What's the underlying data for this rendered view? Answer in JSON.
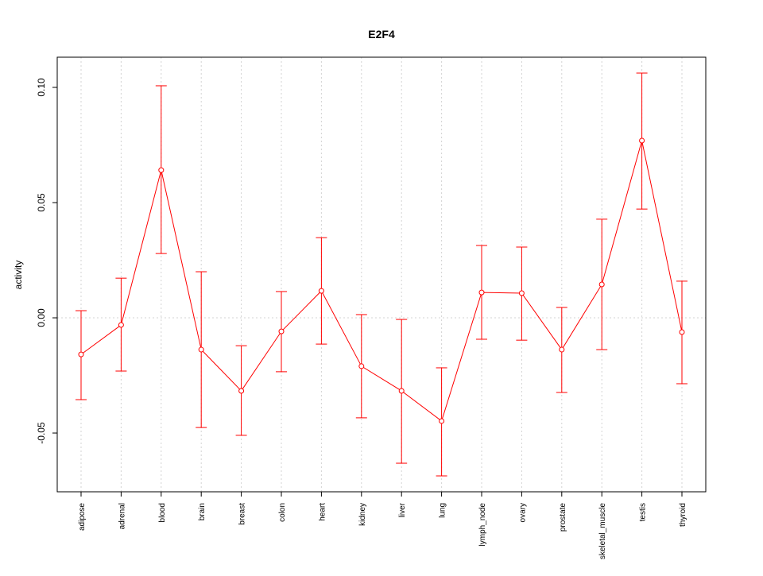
{
  "chart_data": {
    "type": "line",
    "title": "E2F4",
    "xlabel": "",
    "ylabel": "activity",
    "ylim": [
      -0.0755,
      0.1131
    ],
    "yticks": [
      -0.05,
      0.0,
      0.05,
      0.1
    ],
    "ytick_labels": [
      "-0.05",
      "0.00",
      "0.05",
      "0.10"
    ],
    "grid": true,
    "color": "#ff0000",
    "categories": [
      "adipose",
      "adrenal",
      "blood",
      "brain",
      "breast",
      "colon",
      "heart",
      "kidney",
      "liver",
      "lung",
      "lymph_node",
      "ovary",
      "prostate",
      "skeletal_muscle",
      "testis",
      "thyroid"
    ],
    "values": [
      -0.0159,
      -0.0031,
      0.0641,
      -0.0138,
      -0.0317,
      -0.0059,
      0.0117,
      -0.021,
      -0.0317,
      -0.0448,
      0.011,
      0.0107,
      -0.0138,
      0.0145,
      0.0769,
      -0.0062
    ],
    "upper": [
      0.0031,
      0.0172,
      0.1007,
      0.02,
      -0.0121,
      0.0114,
      0.0348,
      0.0014,
      -0.0007,
      -0.0217,
      0.0314,
      0.0307,
      0.0045,
      0.0428,
      0.1062,
      0.0159
    ],
    "lower": [
      -0.0355,
      -0.0231,
      0.0279,
      -0.0476,
      -0.051,
      -0.0234,
      -0.0114,
      -0.0434,
      -0.0631,
      -0.0686,
      -0.0093,
      -0.0097,
      -0.0324,
      -0.0138,
      0.0472,
      -0.0286
    ]
  }
}
